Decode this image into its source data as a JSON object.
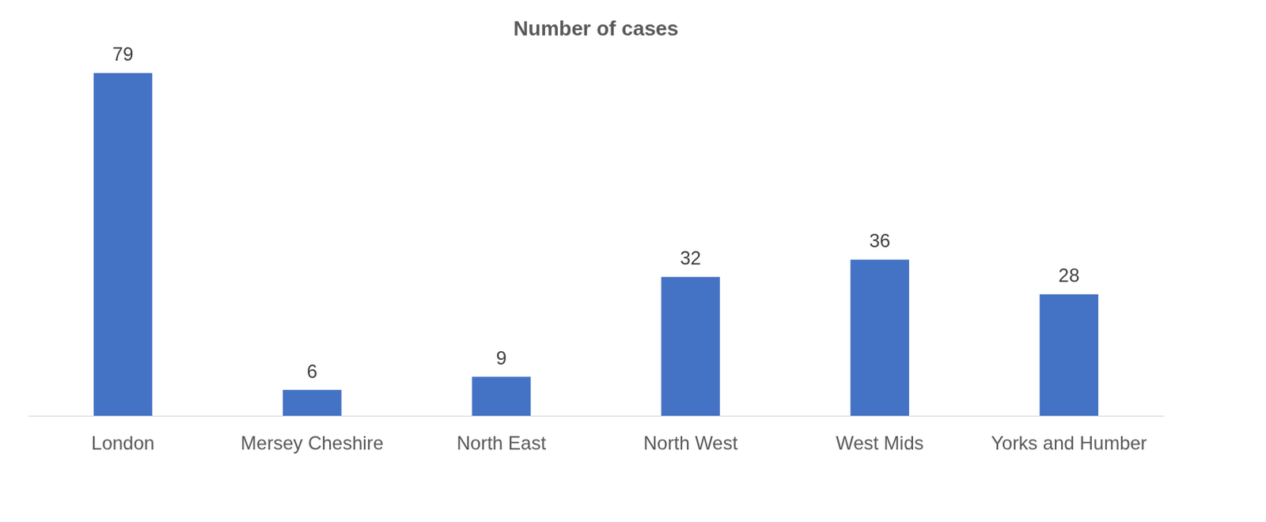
{
  "chart_data": {
    "type": "bar",
    "title": "Number of cases",
    "categories": [
      "London",
      "Mersey Cheshire",
      "North East",
      "North West",
      "West Mids",
      "Yorks and Humber"
    ],
    "values": [
      79,
      6,
      9,
      32,
      36,
      28
    ],
    "color": "#4472c4",
    "data_labels": true,
    "tick_labels": "x",
    "grid": false
  }
}
